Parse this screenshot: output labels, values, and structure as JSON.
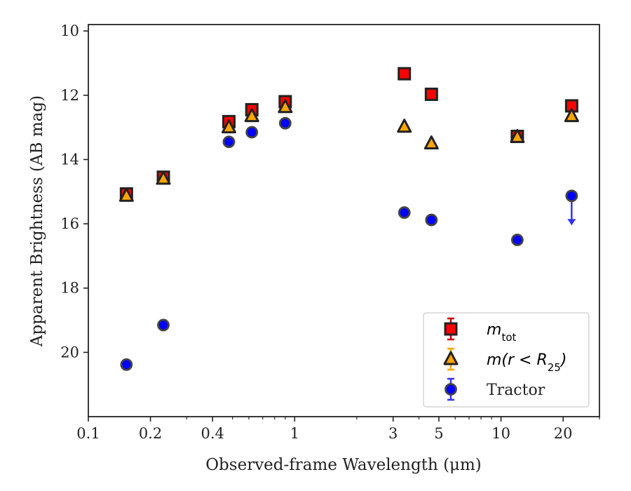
{
  "chart_data": {
    "type": "scatter",
    "title": "",
    "xlabel": "Observed-frame Wavelength (μm)",
    "ylabel": "Apparent Brightness (AB mag)",
    "xscale": "log",
    "xlim": [
      0.1,
      30
    ],
    "ylim": [
      22,
      9.8
    ],
    "y_inverted": true,
    "x_ticks": [
      {
        "value": 0.1,
        "label": "0.1"
      },
      {
        "value": 0.2,
        "label": "0.2"
      },
      {
        "value": 0.4,
        "label": "0.4"
      },
      {
        "value": 1,
        "label": "1"
      },
      {
        "value": 3,
        "label": "3"
      },
      {
        "value": 5,
        "label": "5"
      },
      {
        "value": 10,
        "label": "10"
      },
      {
        "value": 20,
        "label": "20"
      }
    ],
    "y_ticks": [
      {
        "value": 10,
        "label": "10"
      },
      {
        "value": 12,
        "label": "12"
      },
      {
        "value": 14,
        "label": "14"
      },
      {
        "value": 16,
        "label": "16"
      },
      {
        "value": 18,
        "label": "18"
      },
      {
        "value": 20,
        "label": "20"
      }
    ],
    "grid": false,
    "legend_position": "bottom-right",
    "series": [
      {
        "name": "m_tot",
        "legend_base": "m",
        "legend_sub": "tot",
        "legend_suffix": "",
        "marker": "square",
        "color": "#ff0000",
        "edge_color": "#222222",
        "error_color": "#cc0000",
        "x": [
          0.153,
          0.231,
          0.48,
          0.62,
          0.9,
          3.4,
          4.6,
          12.0,
          22.0
        ],
        "y": [
          15.07,
          14.55,
          12.82,
          12.45,
          12.2,
          11.33,
          11.97,
          13.28,
          12.33
        ],
        "upper_limit": [
          false,
          false,
          false,
          false,
          false,
          false,
          false,
          false,
          false
        ]
      },
      {
        "name": "m(r < R_25)",
        "legend_base": "m(r < R",
        "legend_sub": "25",
        "legend_suffix": ")",
        "marker": "triangle",
        "color": "#ffa500",
        "edge_color": "#222222",
        "error_color": "#ffa500",
        "x": [
          0.153,
          0.231,
          0.48,
          0.62,
          0.9,
          3.4,
          4.6,
          12.0,
          22.0
        ],
        "y": [
          15.13,
          14.6,
          13.0,
          12.65,
          12.37,
          12.98,
          13.5,
          13.3,
          12.65
        ],
        "upper_limit": [
          false,
          false,
          false,
          false,
          false,
          false,
          false,
          false,
          false
        ]
      },
      {
        "name": "Tractor",
        "legend_base": "Tractor",
        "legend_sub": "",
        "legend_suffix": "",
        "marker": "circle",
        "color": "#0000ff",
        "edge_color": "#444444",
        "error_color": "#3333ee",
        "x": [
          0.153,
          0.231,
          0.48,
          0.62,
          0.9,
          3.4,
          4.6,
          12.0,
          22.0
        ],
        "y": [
          20.38,
          19.15,
          13.45,
          13.15,
          12.87,
          15.65,
          15.88,
          16.5,
          15.13
        ],
        "upper_limit": [
          false,
          false,
          false,
          false,
          false,
          false,
          false,
          false,
          true
        ]
      }
    ]
  }
}
